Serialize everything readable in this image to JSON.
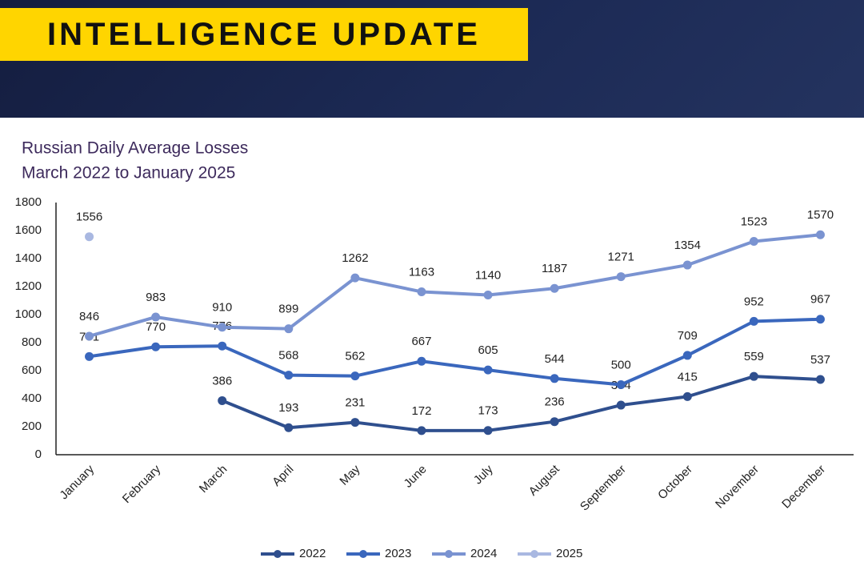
{
  "header": {
    "title": "INTELLIGENCE UPDATE"
  },
  "chart_data": {
    "type": "line",
    "title": "Russian Daily Average Losses",
    "subtitle": "March 2022 to January 2025",
    "categories": [
      "January",
      "February",
      "March",
      "April",
      "May",
      "June",
      "July",
      "August",
      "September",
      "October",
      "November",
      "December"
    ],
    "series": [
      {
        "name": "2022",
        "color": "#2f4f8e",
        "values": [
          null,
          null,
          386,
          193,
          231,
          172,
          173,
          236,
          354,
          415,
          559,
          537
        ]
      },
      {
        "name": "2023",
        "color": "#3a67bd",
        "values": [
          701,
          770,
          776,
          568,
          562,
          667,
          605,
          544,
          500,
          709,
          952,
          967
        ]
      },
      {
        "name": "2024",
        "color": "#7a93d1",
        "values": [
          846,
          983,
          910,
          899,
          1262,
          1163,
          1140,
          1187,
          1271,
          1354,
          1523,
          1570
        ]
      },
      {
        "name": "2025",
        "color": "#a9b8e1",
        "values": [
          1556,
          null,
          null,
          null,
          null,
          null,
          null,
          null,
          null,
          null,
          null,
          null
        ]
      }
    ],
    "ylim": [
      0,
      1800
    ],
    "yticks": [
      0,
      200,
      400,
      600,
      800,
      1000,
      1200,
      1400,
      1600,
      1800
    ],
    "grid": false
  }
}
